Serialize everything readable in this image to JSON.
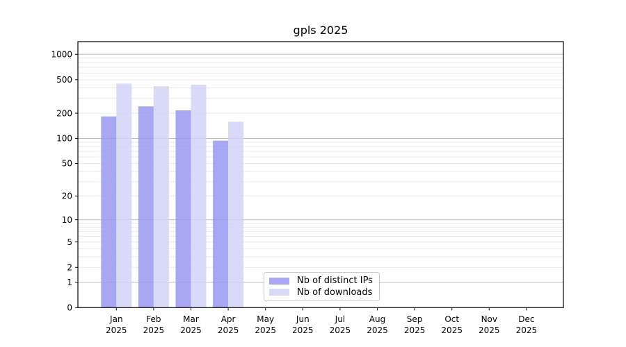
{
  "chart_data": {
    "type": "bar",
    "title": "gpls 2025",
    "categories": [
      {
        "month": "Jan",
        "year": "2025"
      },
      {
        "month": "Feb",
        "year": "2025"
      },
      {
        "month": "Mar",
        "year": "2025"
      },
      {
        "month": "Apr",
        "year": "2025"
      },
      {
        "month": "May",
        "year": "2025"
      },
      {
        "month": "Jun",
        "year": "2025"
      },
      {
        "month": "Jul",
        "year": "2025"
      },
      {
        "month": "Aug",
        "year": "2025"
      },
      {
        "month": "Sep",
        "year": "2025"
      },
      {
        "month": "Oct",
        "year": "2025"
      },
      {
        "month": "Nov",
        "year": "2025"
      },
      {
        "month": "Dec",
        "year": "2025"
      }
    ],
    "series": [
      {
        "name": "Nb of distinct IPs",
        "color": "#9898f1",
        "values": [
          183,
          241,
          216,
          94,
          null,
          null,
          null,
          null,
          null,
          null,
          null,
          null
        ]
      },
      {
        "name": "Nb of downloads",
        "color": "#d2d2f7",
        "values": [
          450,
          418,
          436,
          158,
          null,
          null,
          null,
          null,
          null,
          null,
          null,
          null
        ]
      }
    ],
    "bar_opacity": 0.85,
    "y_axis": {
      "ticks": [
        0,
        1,
        2,
        5,
        10,
        20,
        50,
        100,
        200,
        500,
        1000
      ],
      "scale": "log10(1+y)",
      "range": [
        0,
        1360
      ]
    },
    "grid": {
      "on": true,
      "major_color": "#bbbbbb",
      "minor_color": "#e9e9e9"
    },
    "legend_position": "lower-center"
  }
}
